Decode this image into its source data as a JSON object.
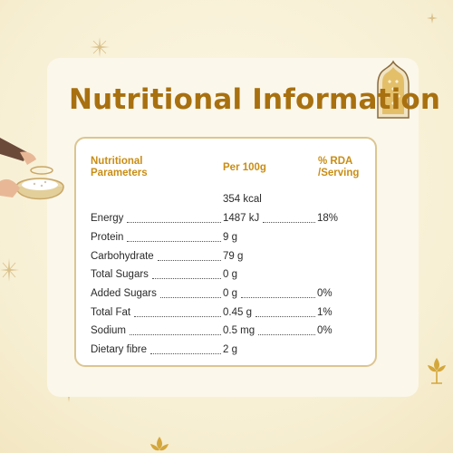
{
  "title": "Nutritional Information",
  "table": {
    "headers": {
      "parameters": "Nutritional\nParameters",
      "per100": "Per 100g",
      "rda": "% RDA\n/Serving"
    },
    "energy_kcal": "354 kcal",
    "rows": [
      {
        "label": "Energy",
        "value": "1487 kJ",
        "rda": "18%"
      },
      {
        "label": "Protein",
        "value": "9 g",
        "rda": ""
      },
      {
        "label": "Carbohydrate",
        "value": "79 g",
        "rda": ""
      },
      {
        "label": "Total Sugars",
        "value": "0 g",
        "rda": ""
      },
      {
        "label": "Added Sugars",
        "value": "0 g",
        "rda": "0%"
      },
      {
        "label": "Total Fat",
        "value": "0.45 g",
        "rda": "1%"
      },
      {
        "label": "Sodium",
        "value": "0.5 mg",
        "rda": "0%"
      },
      {
        "label": "Dietary fibre",
        "value": "2 g",
        "rda": ""
      }
    ]
  },
  "colors": {
    "title": "#a8700f",
    "header": "#c98d14",
    "border": "#dcc590",
    "background": "#f7efd3"
  },
  "icons": [
    "sparkle-icon",
    "arch-window-icon",
    "hand-bowl-illustration",
    "flower-icon"
  ]
}
